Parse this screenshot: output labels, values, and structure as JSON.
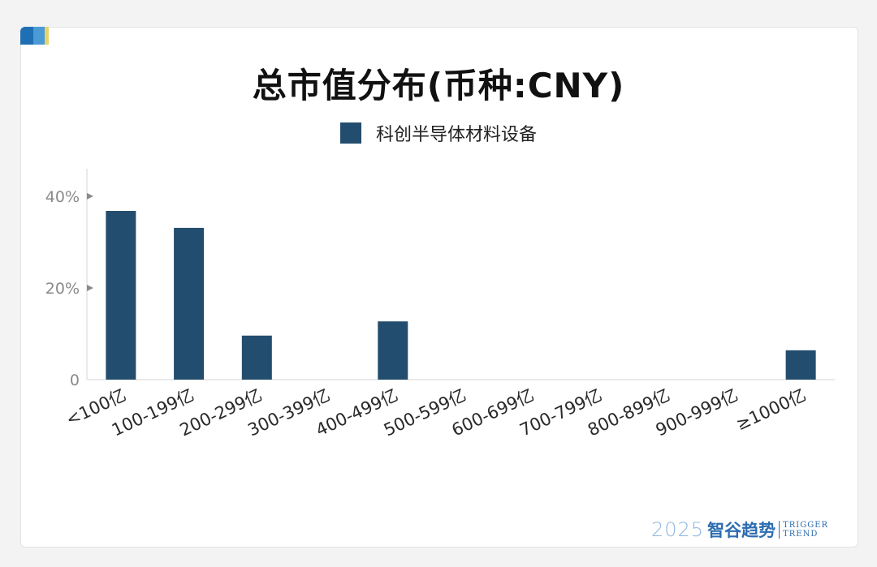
{
  "colors": {
    "bar": "#234d6e",
    "axis": "#e3e3e3",
    "tick_marker": "#8a8a8a"
  },
  "chart_data": {
    "type": "bar",
    "title": "总市值分布(币种:CNY)",
    "legend_position": "top-center",
    "grid": false,
    "categories": [
      "<100亿",
      "100-199亿",
      "200-299亿",
      "300-399亿",
      "400-499亿",
      "500-599亿",
      "600-699亿",
      "700-799亿",
      "800-899亿",
      "900-999亿",
      "≥1000亿"
    ],
    "series": [
      {
        "name": "科创半导体材料设备",
        "values": [
          36.8,
          33.1,
          9.6,
          0,
          12.7,
          0,
          0,
          0,
          0,
          0,
          6.4
        ]
      }
    ],
    "y_ticks": [
      {
        "value": 0,
        "label": "0"
      },
      {
        "value": 20,
        "label": "20%"
      },
      {
        "value": 40,
        "label": "40%"
      }
    ],
    "ylim": [
      0,
      46
    ],
    "xlabel": "",
    "ylabel": ""
  },
  "brand": {
    "year": "2025",
    "name": "智谷趋势",
    "en_line1": "TRIGGER",
    "en_line2": "TREND"
  }
}
